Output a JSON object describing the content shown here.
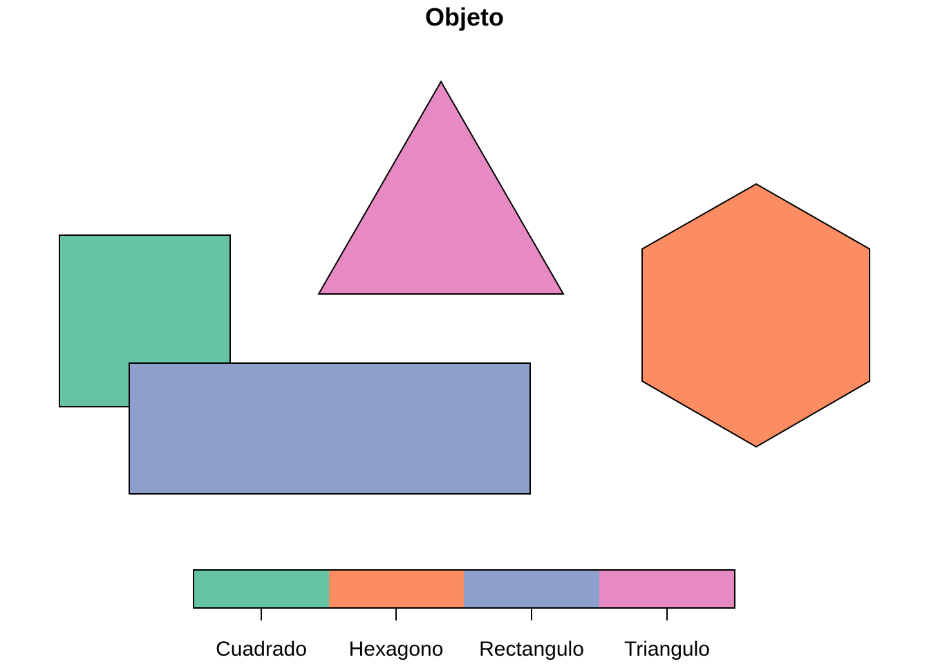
{
  "title": "Objeto",
  "shapes": [
    {
      "name": "Cuadrado",
      "kind": "square",
      "color": "#66c2a5"
    },
    {
      "name": "Triangulo",
      "kind": "triangle",
      "color": "#e78ac3"
    },
    {
      "name": "Hexagono",
      "kind": "hexagon",
      "color": "#fc8d62"
    },
    {
      "name": "Rectangulo",
      "kind": "rectangle",
      "color": "#8da0cb"
    }
  ],
  "legend": {
    "items": [
      {
        "label": "Cuadrado",
        "color": "#66c2a5"
      },
      {
        "label": "Hexagono",
        "color": "#fc8d62"
      },
      {
        "label": "Rectangulo",
        "color": "#8da0cb"
      },
      {
        "label": "Triangulo",
        "color": "#e78ac3"
      }
    ]
  }
}
